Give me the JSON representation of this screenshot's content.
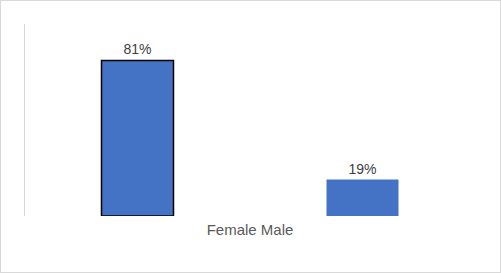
{
  "chart_data": {
    "type": "bar",
    "categories": [
      null,
      null
    ],
    "values": [
      81,
      19
    ],
    "value_labels": [
      "81%",
      "19%"
    ],
    "data_labels": true,
    "x_label": "Female Male",
    "color": "#4472c4",
    "ylim": [
      0,
      100
    ],
    "yticks": [],
    "tick_labels": false,
    "grid": false
  }
}
